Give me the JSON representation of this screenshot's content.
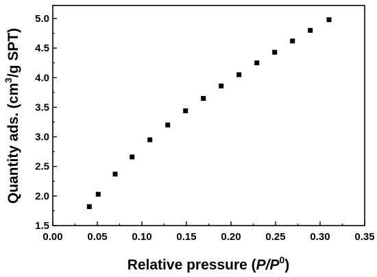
{
  "chart_data": {
    "type": "scatter",
    "xlabel": "Relative pressure (P/P0)",
    "xlabel_parts": {
      "prefix": "Relative pressure (",
      "italic": "P/P",
      "superscript": "0",
      "suffix": ")"
    },
    "ylabel": "Quantity ads. (cm3/g SPT)",
    "ylabel_parts": {
      "prefix": "Quantity ads. (cm",
      "superscript": "3",
      "suffix": "/g SPT)"
    },
    "xlim": [
      0.0,
      0.35
    ],
    "ylim": [
      1.5,
      5.0
    ],
    "x_ticks": [
      0.0,
      0.05,
      0.1,
      0.15,
      0.2,
      0.25,
      0.3,
      0.35
    ],
    "x_tick_labels": [
      "0.00",
      "0.05",
      "0.10",
      "0.15",
      "0.20",
      "0.25",
      "0.30",
      "0.35"
    ],
    "y_ticks": [
      1.5,
      2.0,
      2.5,
      3.0,
      3.5,
      4.0,
      4.5,
      5.0
    ],
    "y_tick_labels": [
      "1.5",
      "2.0",
      "2.5",
      "3.0",
      "3.5",
      "4.0",
      "4.5",
      "5.0"
    ],
    "grid": false,
    "marker": "square",
    "marker_color": "#000000",
    "series": [
      {
        "x": [
          0.041,
          0.051,
          0.07,
          0.089,
          0.109,
          0.129,
          0.149,
          0.169,
          0.189,
          0.209,
          0.229,
          0.249,
          0.269,
          0.289,
          0.31
        ],
        "y": [
          1.82,
          2.03,
          2.37,
          2.66,
          2.95,
          3.2,
          3.44,
          3.65,
          3.86,
          4.05,
          4.25,
          4.43,
          4.62,
          4.8,
          4.98
        ]
      }
    ]
  }
}
